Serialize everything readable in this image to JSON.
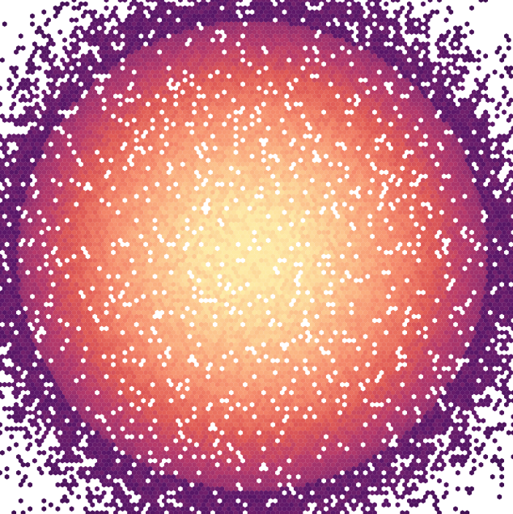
{
  "chart_data": {
    "type": "heatmap",
    "subtype": "hexbin",
    "title": "",
    "xlabel": "",
    "ylabel": "",
    "axes_visible": false,
    "grid": false,
    "legend": "none",
    "colormap": "magma",
    "colormap_stops": [
      "#3b0f4f",
      "#5c1768",
      "#8a2a6e",
      "#b73a6a",
      "#df5a55",
      "#f4876a",
      "#fbb584",
      "#fdeaa6"
    ],
    "background": "#ffffff",
    "distribution": {
      "shape": "elliptical 2D gaussian",
      "peak_location": "center",
      "x_spread_relative": 1.55,
      "y_spread_relative": 1.0,
      "density_peak_fraction": 1.0,
      "sparse_edge_fraction": 0.04
    }
  }
}
